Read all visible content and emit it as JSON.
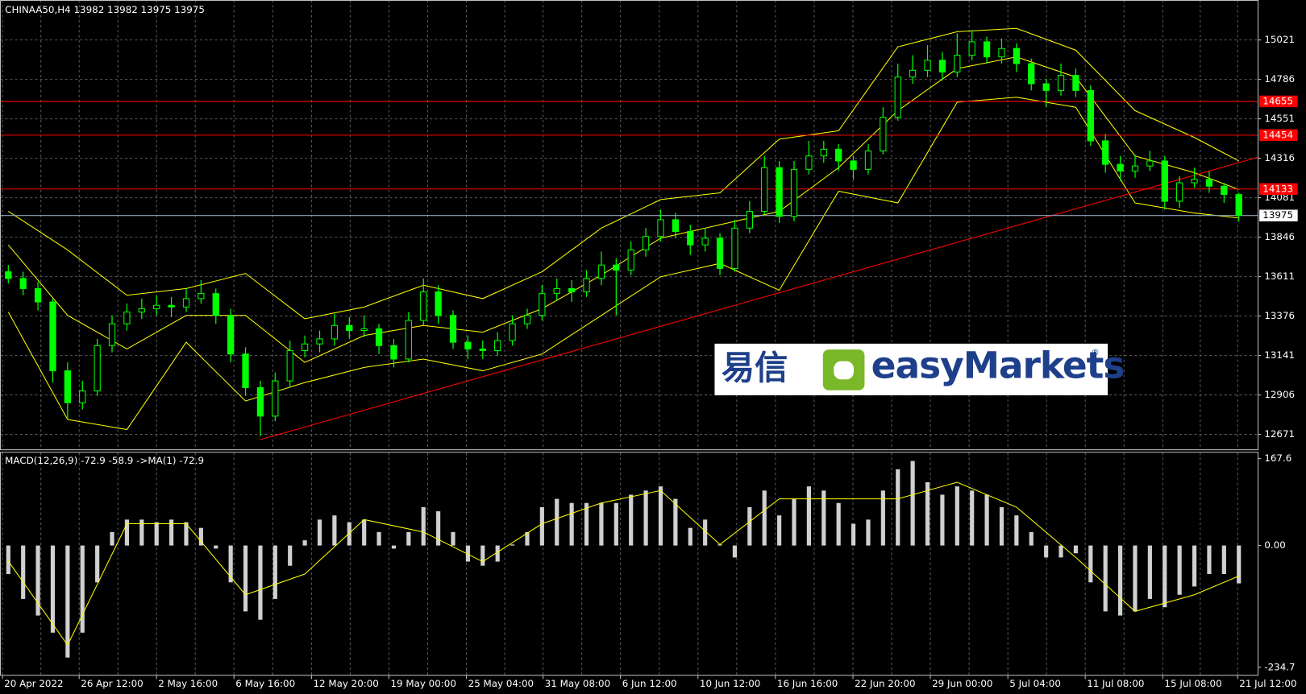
{
  "chart_data": [
    {
      "type": "candlestick",
      "title": "CHINAA50,H4  13982 13982 13975 13975",
      "color": "#00ff00",
      "xlim": [
        -0.56,
        84.27
      ],
      "ylim": [
        12582,
        15259
      ],
      "yticks": [
        15021,
        14786,
        14551,
        14316,
        14081,
        13846,
        13611,
        13376,
        13141,
        12906,
        12671
      ],
      "grid": true,
      "candles": [
        [
          13640,
          13680,
          13570,
          13600
        ],
        [
          13600,
          13640,
          13500,
          13540
        ],
        [
          13540,
          13580,
          13410,
          13460
        ],
        [
          13460,
          13480,
          12980,
          13050
        ],
        [
          13050,
          13100,
          12760,
          12860
        ],
        [
          12860,
          12990,
          12820,
          12930
        ],
        [
          12930,
          13240,
          12900,
          13200
        ],
        [
          13200,
          13380,
          13160,
          13330
        ],
        [
          13330,
          13450,
          13290,
          13400
        ],
        [
          13400,
          13480,
          13360,
          13420
        ],
        [
          13420,
          13500,
          13380,
          13440
        ],
        [
          13440,
          13490,
          13370,
          13430
        ],
        [
          13430,
          13540,
          13400,
          13480
        ],
        [
          13480,
          13590,
          13450,
          13510
        ],
        [
          13510,
          13540,
          13330,
          13380
        ],
        [
          13380,
          13420,
          13100,
          13150
        ],
        [
          13150,
          13190,
          12900,
          12950
        ],
        [
          12950,
          12990,
          12660,
          12780
        ],
        [
          12780,
          13040,
          12750,
          12990
        ],
        [
          12990,
          13230,
          12950,
          13170
        ],
        [
          13170,
          13260,
          13130,
          13210
        ],
        [
          13210,
          13290,
          13160,
          13240
        ],
        [
          13240,
          13390,
          13200,
          13320
        ],
        [
          13320,
          13370,
          13240,
          13290
        ],
        [
          13290,
          13380,
          13250,
          13300
        ],
        [
          13300,
          13330,
          13150,
          13200
        ],
        [
          13200,
          13240,
          13070,
          13120
        ],
        [
          13120,
          13400,
          13100,
          13350
        ],
        [
          13350,
          13600,
          13320,
          13520
        ],
        [
          13520,
          13560,
          13330,
          13380
        ],
        [
          13380,
          13410,
          13180,
          13220
        ],
        [
          13220,
          13260,
          13120,
          13180
        ],
        [
          13180,
          13230,
          13120,
          13170
        ],
        [
          13170,
          13280,
          13140,
          13230
        ],
        [
          13230,
          13380,
          13200,
          13330
        ],
        [
          13330,
          13420,
          13300,
          13380
        ],
        [
          13380,
          13560,
          13350,
          13510
        ],
        [
          13510,
          13600,
          13470,
          13540
        ],
        [
          13540,
          13590,
          13460,
          13520
        ],
        [
          13520,
          13650,
          13490,
          13600
        ],
        [
          13600,
          13760,
          13560,
          13680
        ],
        [
          13680,
          13720,
          13380,
          13650
        ],
        [
          13650,
          13820,
          13620,
          13770
        ],
        [
          13770,
          13900,
          13730,
          13850
        ],
        [
          13850,
          14010,
          13820,
          13950
        ],
        [
          13950,
          13990,
          13840,
          13880
        ],
        [
          13880,
          13920,
          13740,
          13800
        ],
        [
          13800,
          13900,
          13760,
          13840
        ],
        [
          13840,
          13870,
          13620,
          13660
        ],
        [
          13660,
          13950,
          13640,
          13900
        ],
        [
          13900,
          14060,
          13870,
          14000
        ],
        [
          14000,
          14330,
          13980,
          14260
        ],
        [
          14260,
          14300,
          13930,
          13970
        ],
        [
          13970,
          14300,
          13940,
          14250
        ],
        [
          14250,
          14420,
          14220,
          14330
        ],
        [
          14330,
          14420,
          14290,
          14370
        ],
        [
          14370,
          14400,
          14240,
          14300
        ],
        [
          14300,
          14330,
          14190,
          14250
        ],
        [
          14250,
          14400,
          14220,
          14360
        ],
        [
          14360,
          14620,
          14340,
          14560
        ],
        [
          14560,
          14880,
          14540,
          14800
        ],
        [
          14800,
          14930,
          14760,
          14840
        ],
        [
          14840,
          14990,
          14800,
          14900
        ],
        [
          14900,
          14950,
          14780,
          14830
        ],
        [
          14830,
          15060,
          14800,
          14930
        ],
        [
          14930,
          15080,
          14900,
          15010
        ],
        [
          15010,
          15040,
          14880,
          14920
        ],
        [
          14920,
          15030,
          14880,
          14970
        ],
        [
          14970,
          15000,
          14830,
          14880
        ],
        [
          14880,
          14910,
          14720,
          14760
        ],
        [
          14760,
          14790,
          14620,
          14720
        ],
        [
          14720,
          14880,
          14690,
          14810
        ],
        [
          14810,
          14850,
          14680,
          14720
        ],
        [
          14720,
          14750,
          14390,
          14420
        ],
        [
          14420,
          14460,
          14230,
          14280
        ],
        [
          14280,
          14330,
          14180,
          14240
        ],
        [
          14240,
          14340,
          14200,
          14270
        ],
        [
          14270,
          14360,
          14240,
          14300
        ],
        [
          14300,
          14330,
          14010,
          14060
        ],
        [
          14060,
          14210,
          14020,
          14170
        ],
        [
          14170,
          14260,
          14140,
          14190
        ],
        [
          14190,
          14240,
          14110,
          14150
        ],
        [
          14150,
          14170,
          14050,
          14100
        ],
        [
          14100,
          14110,
          13940,
          13975
        ]
      ],
      "bands": {
        "color": "#ffff00",
        "x": [
          0,
          4,
          8,
          12,
          16,
          20,
          24,
          28,
          32,
          36,
          40,
          44,
          48,
          52,
          56,
          60,
          64,
          68,
          72,
          76,
          80,
          83
        ],
        "upper": [
          14000,
          13770,
          13500,
          13540,
          13630,
          13360,
          13430,
          13560,
          13480,
          13640,
          13900,
          14070,
          14110,
          14430,
          14480,
          14980,
          15070,
          15090,
          14960,
          14600,
          14440,
          14300
        ],
        "middle": [
          13800,
          13380,
          13180,
          13380,
          13380,
          13100,
          13260,
          13320,
          13280,
          13420,
          13620,
          13840,
          13920,
          14000,
          14260,
          14600,
          14850,
          14920,
          14800,
          14330,
          14230,
          14130
        ],
        "lower": [
          13400,
          12760,
          12700,
          13220,
          12870,
          12980,
          13070,
          13120,
          13050,
          13150,
          13380,
          13610,
          13690,
          13530,
          14120,
          14050,
          14650,
          14680,
          14620,
          14050,
          13990,
          13960
        ]
      },
      "trendline": {
        "color": "#ff0000",
        "x": [
          17,
          84.27
        ],
        "values": [
          12640,
          14322
        ]
      },
      "levels": [
        14655,
        14454,
        14133
      ],
      "level_color": "#ff0000",
      "current": 13975,
      "watermark": {
        "cn": "易信",
        "brand": "easyMarkets",
        "mark": "®"
      }
    },
    {
      "type": "macd",
      "title": "MACD(12,26,9) -72.9 -58.9  ->MA(1) -72.9",
      "color": "#d0d0d0",
      "xlim": [
        -0.56,
        84.27
      ],
      "ylim": [
        -251,
        179
      ],
      "yticks": [
        167.6,
        {
          "value": 0,
          "label": "0.00"
        },
        -234.7
      ],
      "values": [
        -55,
        -103,
        -135,
        -168,
        -216,
        -168,
        -71,
        26,
        50,
        50,
        45,
        50,
        45,
        34,
        -6,
        -71,
        -127,
        -143,
        -103,
        -39,
        10,
        50,
        58,
        45,
        50,
        26,
        -6,
        26,
        74,
        66,
        26,
        -31,
        -39,
        -31,
        2,
        26,
        74,
        90,
        82,
        82,
        82,
        82,
        98,
        106,
        114,
        90,
        34,
        50,
        2,
        -23,
        74,
        106,
        58,
        90,
        114,
        106,
        82,
        42,
        50,
        106,
        147,
        163,
        122,
        98,
        114,
        106,
        98,
        74,
        58,
        26,
        -23,
        -23,
        -15,
        -71,
        -127,
        -135,
        -127,
        -103,
        -119,
        -95,
        -79,
        -55,
        -55,
        -72.9
      ],
      "signal": {
        "color": "#ffff00",
        "x": [
          0,
          4,
          8,
          12,
          16,
          20,
          24,
          28,
          32,
          36,
          40,
          44,
          48,
          52,
          56,
          60,
          64,
          68,
          72,
          76,
          80,
          83
        ],
        "values": [
          -30,
          -192,
          42,
          42,
          -95,
          -55,
          50,
          26,
          -31,
          42,
          82,
          106,
          2,
          90,
          90,
          90,
          122,
          74,
          -23,
          -127,
          -95,
          -58.9
        ]
      },
      "xticks": [
        {
          "value": -0.39,
          "label": "20 Apr 2022"
        },
        {
          "value": 4.78,
          "label": "26 Apr 12:00"
        },
        {
          "value": 10.0,
          "label": "2 May 16:00"
        },
        {
          "value": 15.22,
          "label": "6 May 16:00"
        },
        {
          "value": 20.45,
          "label": "12 May 20:00"
        },
        {
          "value": 25.67,
          "label": "19 May 00:00"
        },
        {
          "value": 30.9,
          "label": "25 May 04:00"
        },
        {
          "value": 36.07,
          "label": "31 May 08:00"
        },
        {
          "value": 41.29,
          "label": "6 Jun 12:00"
        },
        {
          "value": 46.52,
          "label": "10 Jun 12:00"
        },
        {
          "value": 51.74,
          "label": "16 Jun 16:00"
        },
        {
          "value": 56.97,
          "label": "22 Jun 20:00"
        },
        {
          "value": 62.19,
          "label": "29 Jun 00:00"
        },
        {
          "value": 67.42,
          "label": "5 Jul 04:00"
        },
        {
          "value": 72.64,
          "label": "11 Jul 08:00"
        },
        {
          "value": 77.87,
          "label": "15 Jul 08:00"
        },
        {
          "value": 82.92,
          "label": "21 Jul 12:00"
        }
      ]
    }
  ]
}
